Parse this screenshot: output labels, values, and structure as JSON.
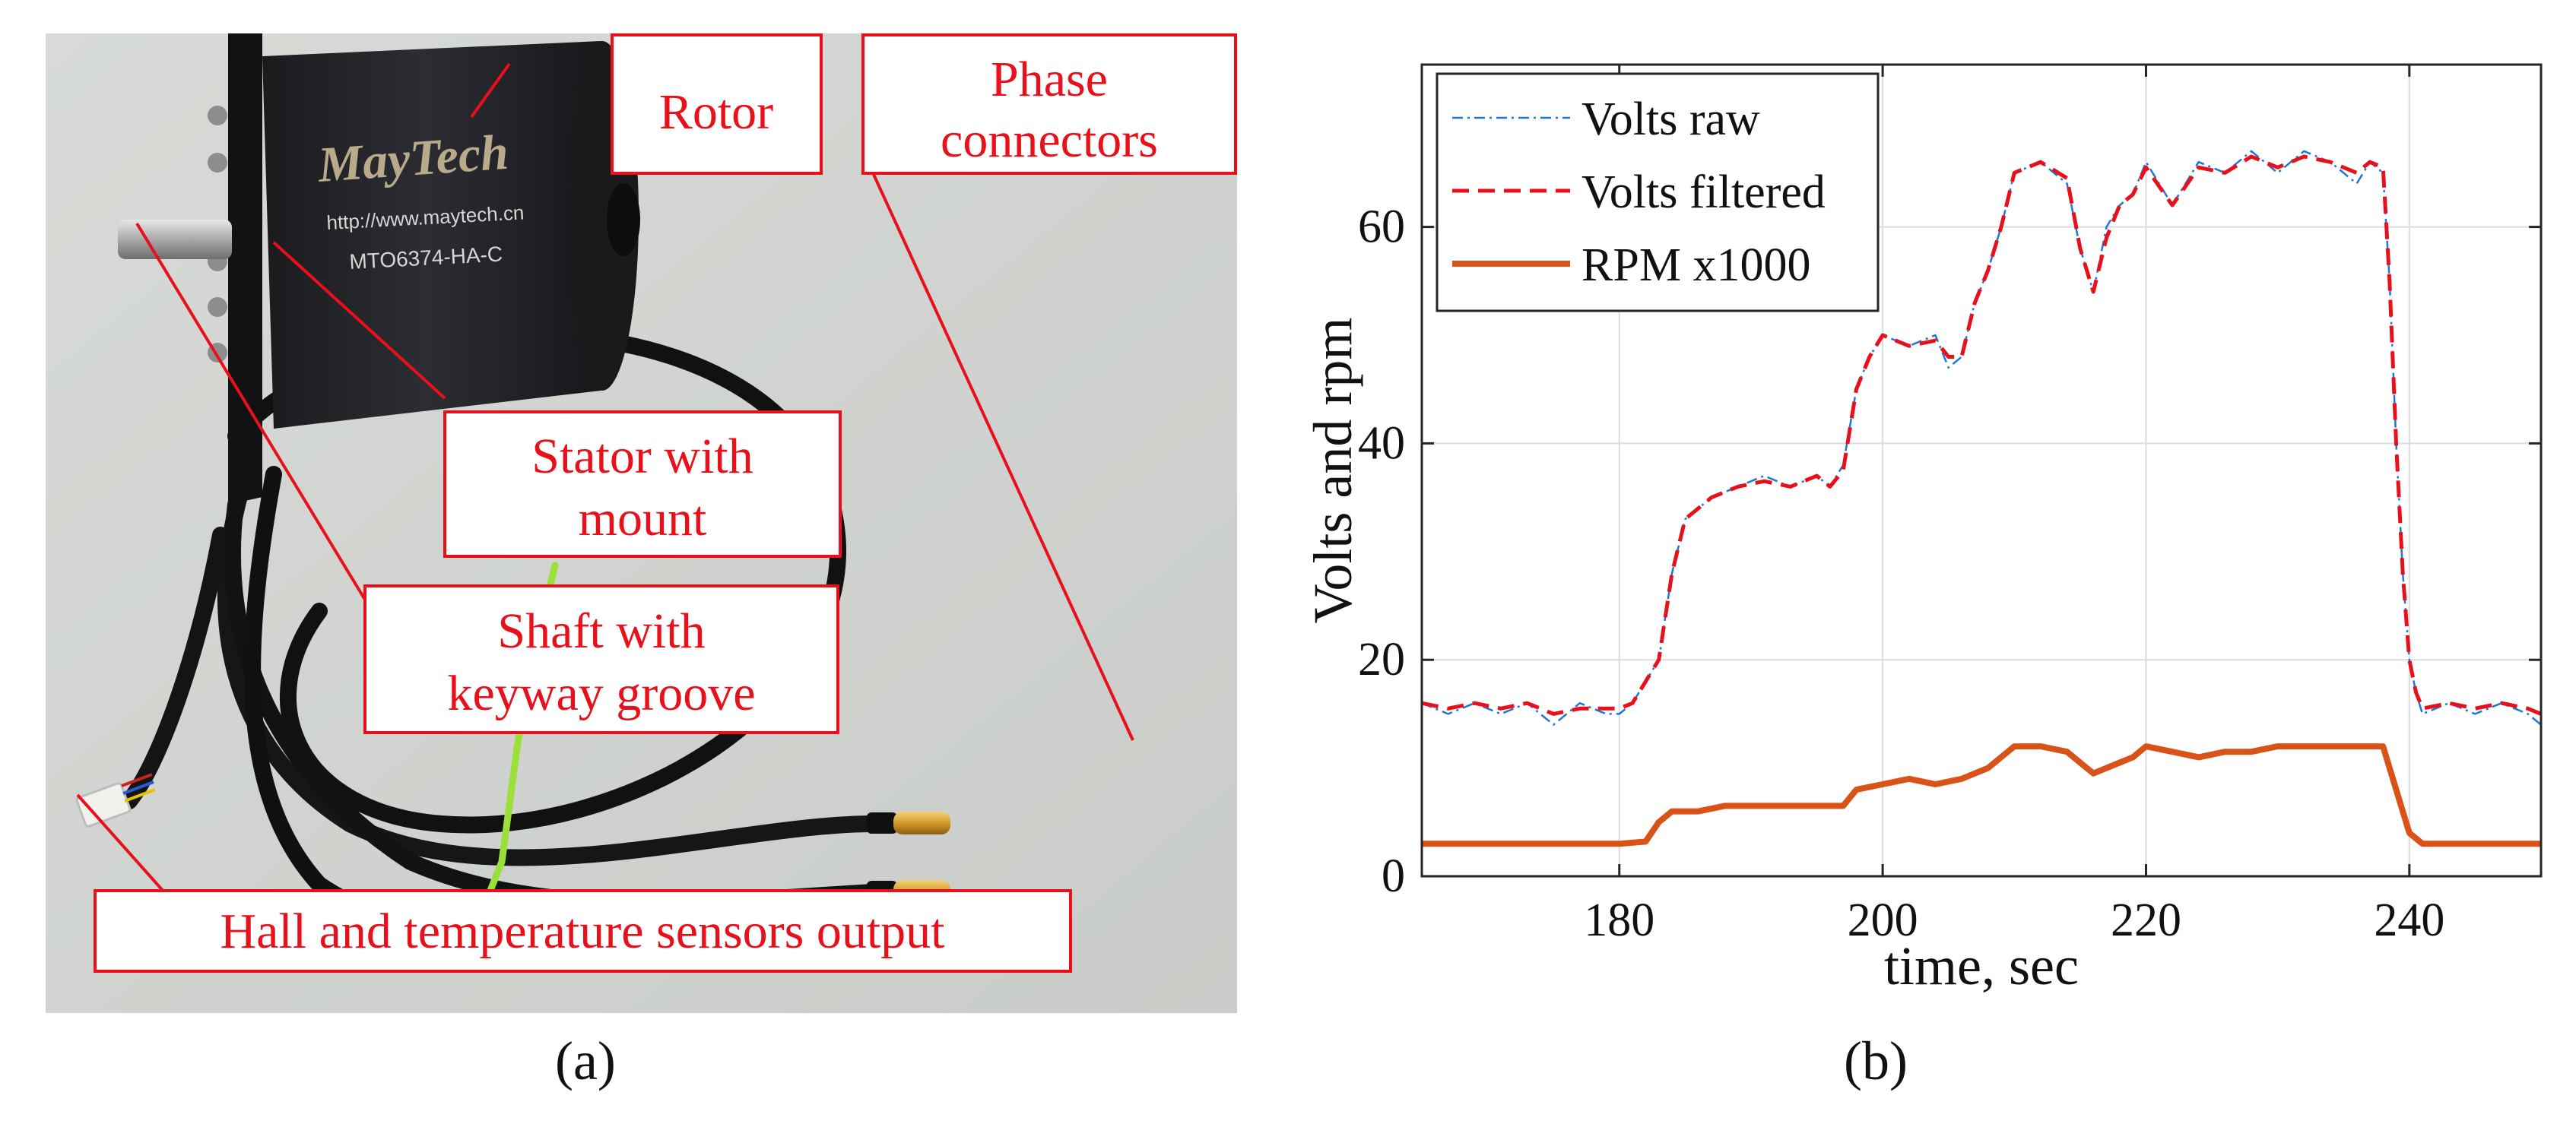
{
  "photo": {
    "callouts": [
      {
        "id": "rotor",
        "lines": [
          "Rotor"
        ]
      },
      {
        "id": "phase",
        "lines": [
          "Phase",
          "connectors"
        ]
      },
      {
        "id": "stator",
        "lines": [
          "Stator with",
          "mount"
        ]
      },
      {
        "id": "shaft",
        "lines": [
          "Shaft with",
          "keyway groove"
        ]
      },
      {
        "id": "hall",
        "lines": [
          "Hall and temperature sensors output"
        ]
      }
    ],
    "motor_brand": "MayTech",
    "motor_url": "http://www.maytech.cn",
    "motor_model": "MTO6374-HA-C",
    "callout_color": "#e8101a"
  },
  "captions": {
    "a": "(a)",
    "b": "(b)"
  },
  "chart_data": {
    "type": "line",
    "xlabel": "time, sec",
    "ylabel": "Volts and rpm",
    "xlim": [
      165,
      250
    ],
    "ylim": [
      0,
      75
    ],
    "xticks": [
      180,
      200,
      220,
      240
    ],
    "yticks": [
      0,
      20,
      40,
      60
    ],
    "grid": true,
    "legend_position": "top-left",
    "series": [
      {
        "name": "Volts raw",
        "color": "#1f77d4",
        "style": "dash-dot",
        "x": [
          165,
          167,
          169,
          171,
          173,
          175,
          177,
          179,
          180,
          181,
          182,
          183,
          184,
          185,
          187,
          189,
          191,
          193,
          195,
          196,
          197,
          198,
          199,
          200,
          202,
          204,
          205,
          206,
          207,
          208,
          209,
          210,
          212,
          214,
          215,
          216,
          217,
          218,
          219,
          220,
          222,
          224,
          226,
          228,
          230,
          232,
          234,
          236,
          237,
          238,
          238.5,
          239,
          239.5,
          240,
          240.5,
          241,
          243,
          245,
          247,
          249,
          250
        ],
        "y": [
          16,
          15,
          16,
          15,
          16,
          14,
          16,
          15,
          15,
          16,
          18,
          20,
          28,
          33,
          35,
          36,
          37,
          36,
          37,
          36,
          38,
          45,
          48,
          50,
          49,
          50,
          47,
          48,
          53,
          56,
          60,
          65,
          66,
          64,
          58,
          54,
          60,
          62,
          63,
          66,
          62,
          66,
          65,
          67,
          65,
          67,
          66,
          64,
          66,
          65,
          55,
          40,
          28,
          20,
          17,
          15,
          16,
          15,
          16,
          15,
          14
        ]
      },
      {
        "name": "Volts filtered",
        "color": "#e8101a",
        "style": "dashed",
        "x": [
          165,
          167,
          169,
          171,
          173,
          175,
          177,
          179,
          180,
          181,
          182,
          183,
          184,
          185,
          187,
          189,
          191,
          193,
          195,
          196,
          197,
          198,
          199,
          200,
          202,
          204,
          205,
          206,
          207,
          208,
          209,
          210,
          212,
          214,
          215,
          216,
          217,
          218,
          219,
          220,
          222,
          224,
          226,
          228,
          230,
          232,
          234,
          236,
          237,
          238,
          238.5,
          239,
          239.5,
          240,
          240.5,
          241,
          243,
          245,
          247,
          249,
          250
        ],
        "y": [
          16,
          15.5,
          16,
          15.5,
          16,
          15,
          15.5,
          15.5,
          15.5,
          16,
          18,
          20,
          28,
          33,
          35,
          36,
          36.5,
          36,
          37,
          36,
          37.5,
          45,
          48,
          50,
          49,
          49.5,
          48,
          48,
          53,
          56,
          60,
          65,
          66,
          64.5,
          58,
          54,
          59,
          62,
          63,
          65.5,
          62,
          65.5,
          65,
          66.5,
          65.5,
          66.5,
          66,
          65,
          66,
          65.5,
          55,
          40,
          28,
          20,
          17,
          15.5,
          16,
          15.5,
          16,
          15.5,
          15
        ]
      },
      {
        "name": "RPM x1000",
        "color": "#d95319",
        "style": "solid",
        "x": [
          165,
          170,
          175,
          180,
          182,
          183,
          184,
          186,
          188,
          190,
          192,
          194,
          196,
          197,
          198,
          200,
          202,
          204,
          206,
          208,
          210,
          212,
          214,
          215,
          216,
          217,
          218,
          219,
          220,
          222,
          224,
          226,
          228,
          230,
          232,
          234,
          236,
          238,
          239,
          240,
          241,
          243,
          245,
          247,
          249,
          250
        ],
        "y": [
          3,
          3,
          3,
          3,
          3.2,
          5,
          6,
          6,
          6.5,
          6.5,
          6.5,
          6.5,
          6.5,
          6.5,
          8,
          8.5,
          9,
          8.5,
          9,
          10,
          12,
          12,
          11.5,
          10.5,
          9.5,
          10,
          10.5,
          11,
          12,
          11.5,
          11,
          11.5,
          11.5,
          12,
          12,
          12,
          12,
          12,
          8,
          4,
          3,
          3,
          3,
          3,
          3,
          3
        ]
      }
    ]
  }
}
